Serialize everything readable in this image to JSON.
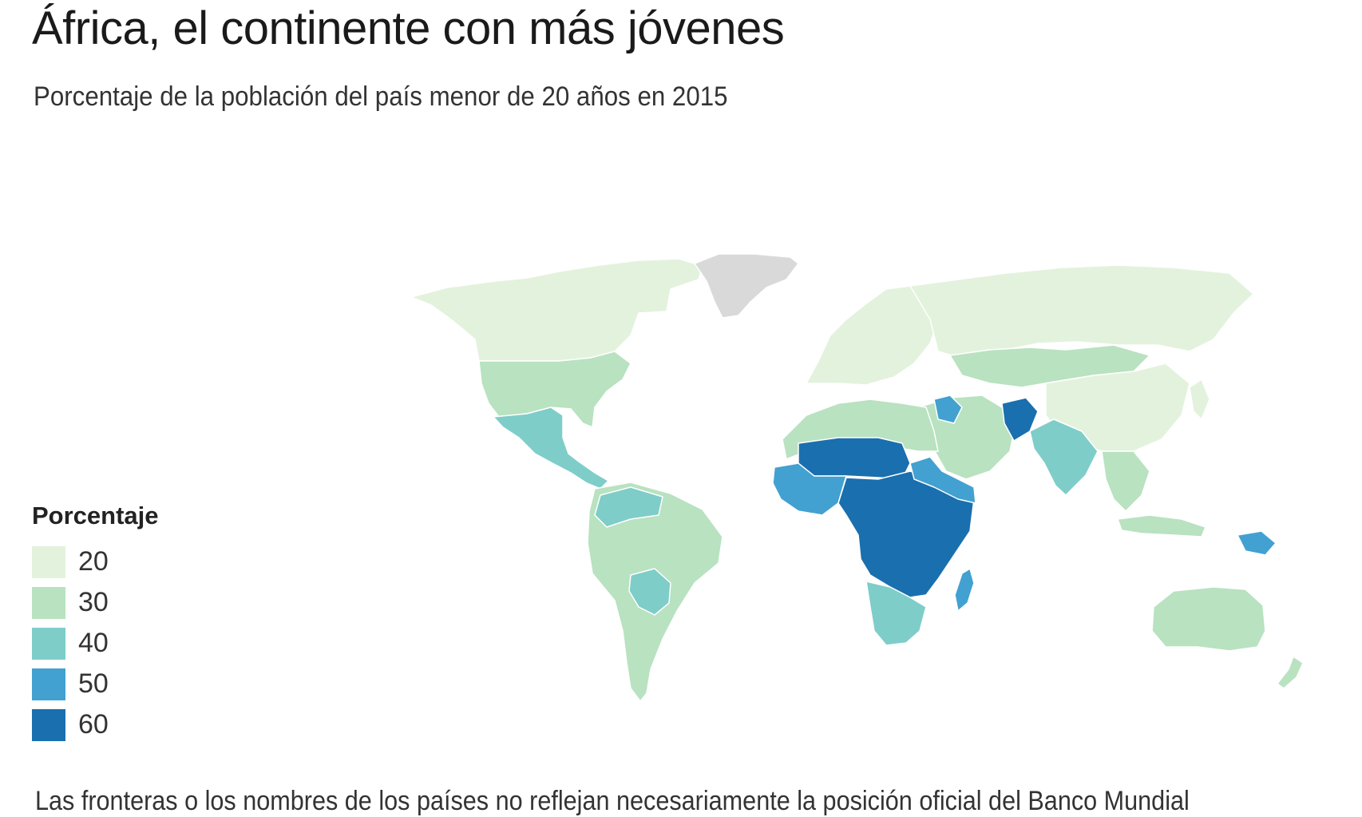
{
  "header": {
    "title": "África, el continente con más jóvenes",
    "subtitle": "Porcentaje de la población del país menor de 20 años en 2015"
  },
  "legend": {
    "title": "Porcentaje",
    "items": [
      {
        "label": "20",
        "color": "#e3f2dd"
      },
      {
        "label": "30",
        "color": "#b9e2c0"
      },
      {
        "label": "40",
        "color": "#7ecdc9"
      },
      {
        "label": "50",
        "color": "#42a1d0"
      },
      {
        "label": "60",
        "color": "#1a6fae"
      }
    ],
    "no_data_color": "#d9d9d9"
  },
  "map": {
    "type": "choropleth",
    "regions": [
      {
        "region": "Canada and Alaska",
        "class": "20"
      },
      {
        "region": "Greenland",
        "class": "no data"
      },
      {
        "region": "United States",
        "class": "30"
      },
      {
        "region": "Mexico and Central America",
        "class": "40"
      },
      {
        "region": "South America",
        "class": "30"
      },
      {
        "region": "Bolivia and Paraguay",
        "class": "40"
      },
      {
        "region": "Europe",
        "class": "20"
      },
      {
        "region": "Russia",
        "class": "20"
      },
      {
        "region": "Central Asia and Mongolia",
        "class": "30"
      },
      {
        "region": "Middle East",
        "class": "30"
      },
      {
        "region": "Iraq",
        "class": "50"
      },
      {
        "region": "Afghanistan",
        "class": "60"
      },
      {
        "region": "South Asia",
        "class": "40"
      },
      {
        "region": "China",
        "class": "20"
      },
      {
        "region": "Southeast Asia",
        "class": "30"
      },
      {
        "region": "Papua New Guinea",
        "class": "50"
      },
      {
        "region": "Australia and New Zealand",
        "class": "30"
      },
      {
        "region": "North Africa",
        "class": "30"
      },
      {
        "region": "Sahel",
        "class": "60"
      },
      {
        "region": "West Africa",
        "class": "50"
      },
      {
        "region": "Central and East Africa",
        "class": "60"
      },
      {
        "region": "Southern Africa",
        "class": "40"
      },
      {
        "region": "Madagascar",
        "class": "50"
      }
    ]
  },
  "footnote": "Las fronteras o los nombres de los países no reflejan necesariamente la posición oficial del Banco Mundial"
}
